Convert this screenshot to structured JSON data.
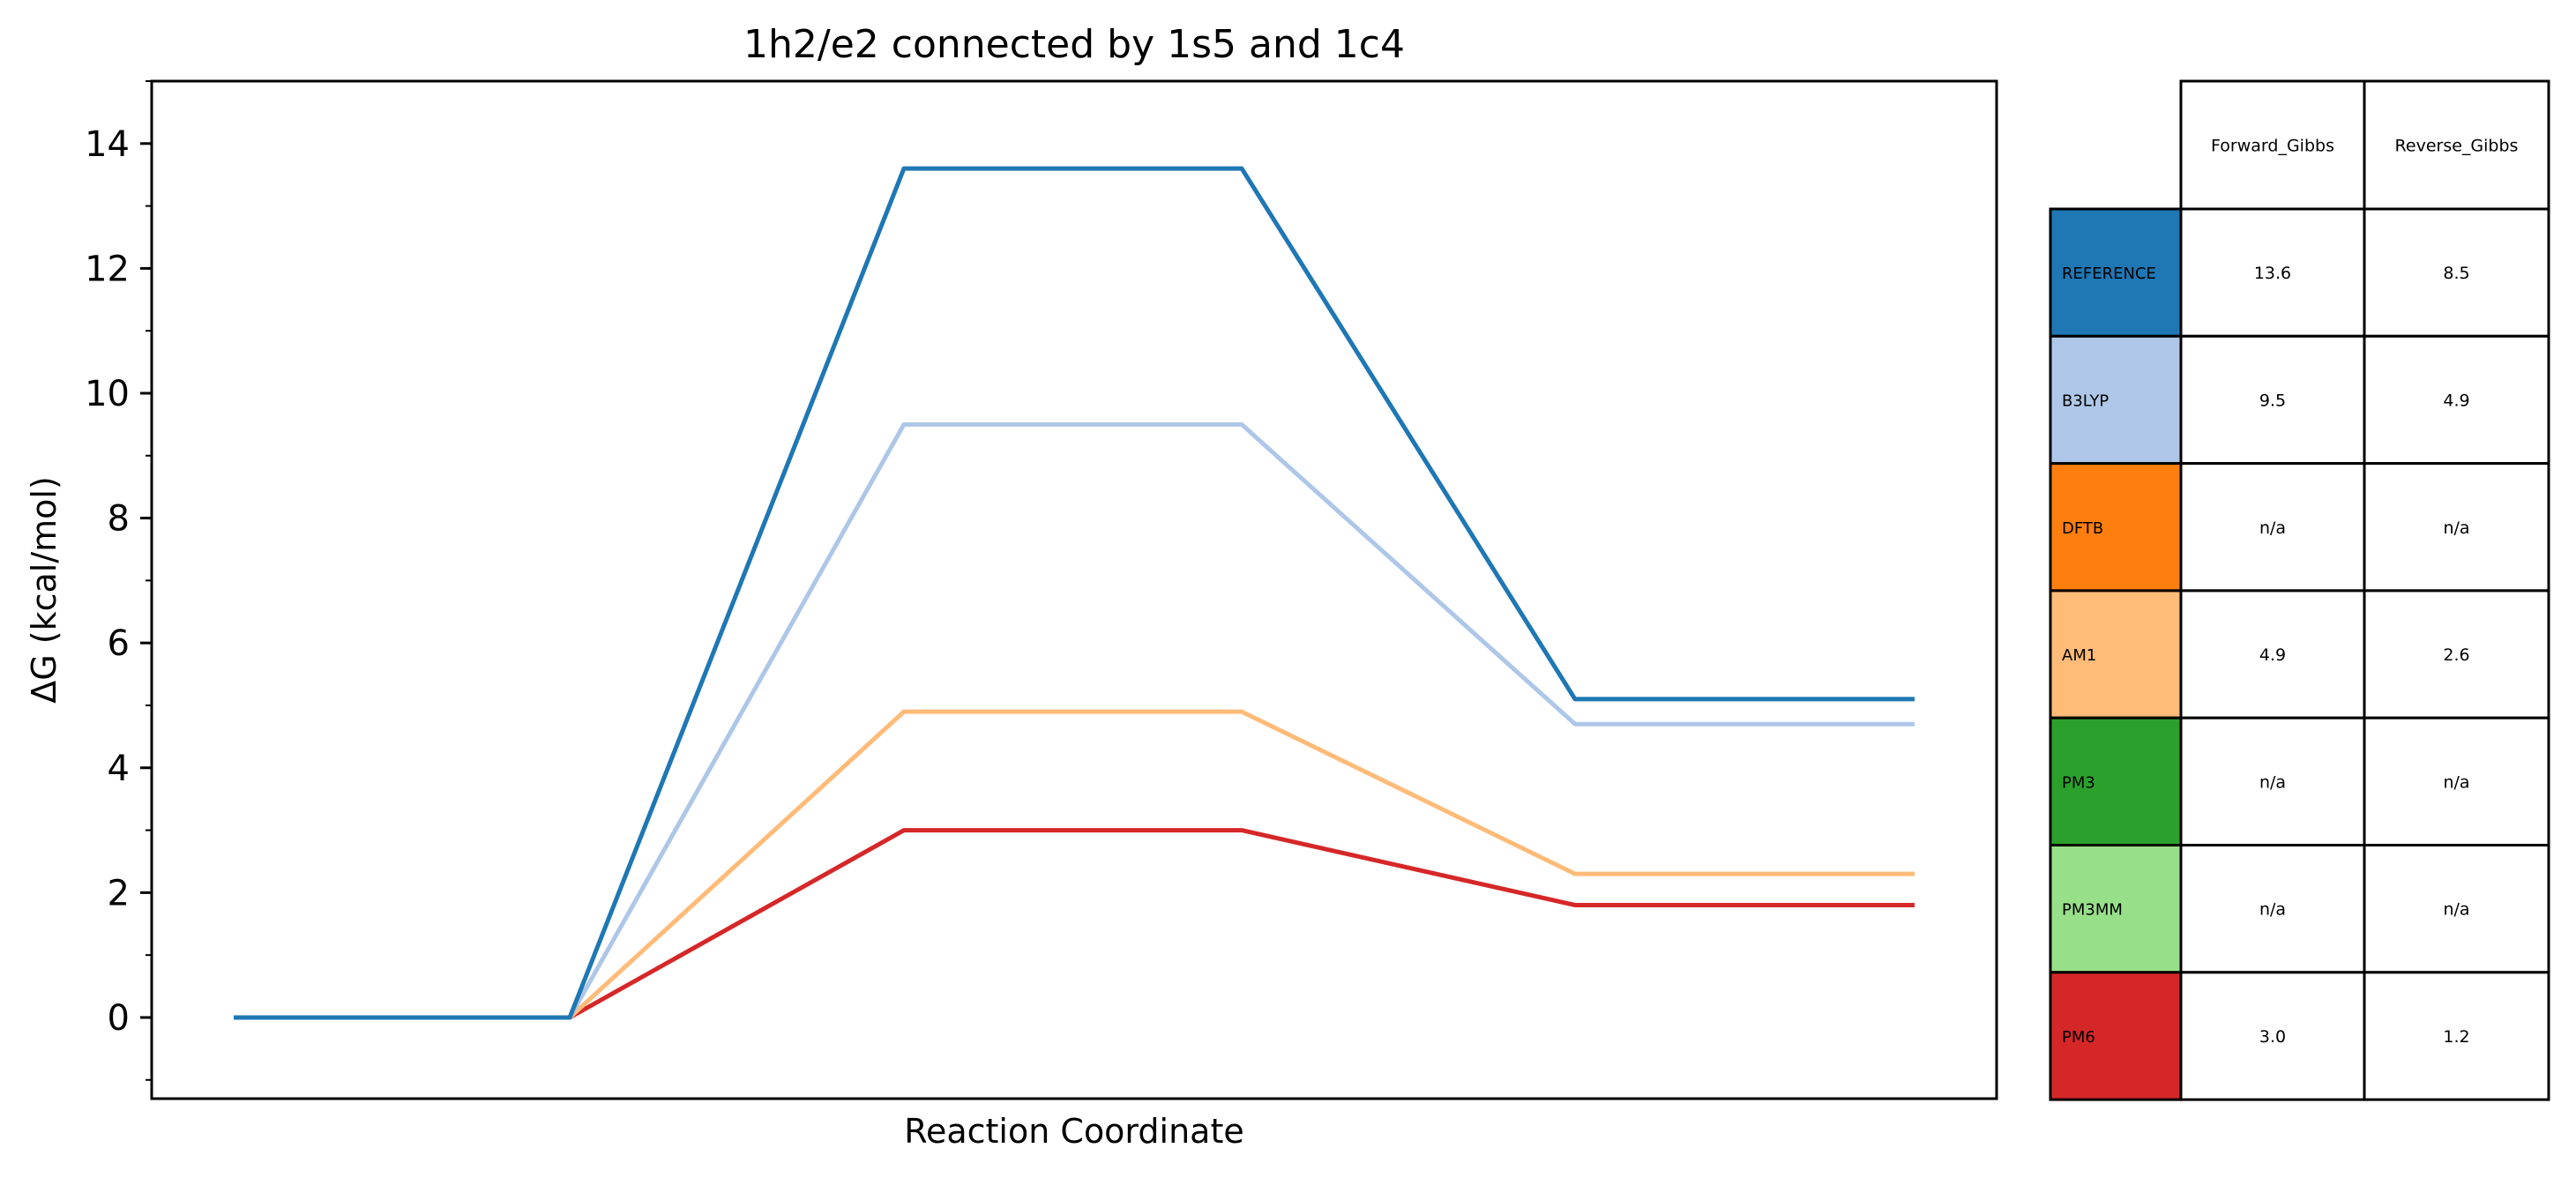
{
  "chart_data": {
    "type": "line",
    "title": "1h2/e2 connected by 1s5 and 1c4",
    "xlabel": "Reaction Coordinate",
    "ylabel": "ΔG (kcal/mol)",
    "ylim": [
      -1.3,
      15
    ],
    "yticks": [
      0,
      2,
      4,
      6,
      8,
      10,
      12,
      14
    ],
    "grid": false,
    "x_profile": [
      0,
      1,
      2,
      3,
      4,
      5
    ],
    "series": [
      {
        "name": "REFERENCE",
        "color": "#1f77b4",
        "values": [
          0,
          0,
          13.6,
          13.6,
          5.1,
          5.1
        ]
      },
      {
        "name": "B3LYP",
        "color": "#aec7e8",
        "values": [
          0,
          0,
          9.5,
          9.5,
          4.7,
          4.7
        ]
      },
      {
        "name": "AM1",
        "color": "#ffbb78",
        "values": [
          0,
          0,
          4.9,
          4.9,
          2.3,
          2.3
        ]
      },
      {
        "name": "PM6",
        "color": "#d62728",
        "values": [
          0,
          0,
          3.0,
          3.0,
          1.8,
          1.8
        ]
      }
    ]
  },
  "table": {
    "columns": [
      "Forward_Gibbs",
      "Reverse_Gibbs"
    ],
    "rows": [
      {
        "label": "REFERENCE",
        "color": "#1f77b4",
        "forward": "13.6",
        "reverse": "8.5"
      },
      {
        "label": "B3LYP",
        "color": "#aec7e8",
        "forward": "9.5",
        "reverse": "4.9"
      },
      {
        "label": "DFTB",
        "color": "#ff7f0e",
        "forward": "n/a",
        "reverse": "n/a"
      },
      {
        "label": "AM1",
        "color": "#ffbb78",
        "forward": "4.9",
        "reverse": "2.6"
      },
      {
        "label": "PM3",
        "color": "#2ca02c",
        "forward": "n/a",
        "reverse": "n/a"
      },
      {
        "label": "PM3MM",
        "color": "#98df8a",
        "forward": "n/a",
        "reverse": "n/a"
      },
      {
        "label": "PM6",
        "color": "#d62728",
        "forward": "3.0",
        "reverse": "1.2"
      }
    ]
  }
}
